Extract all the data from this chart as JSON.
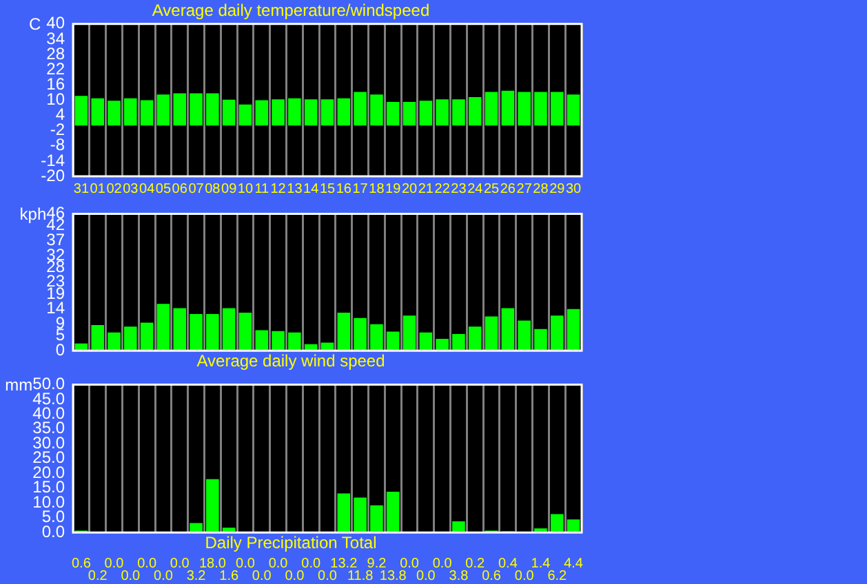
{
  "chart_data": [
    {
      "type": "bar",
      "title": "Average daily temperature/windspeed",
      "ylabel": "C",
      "categories": [
        "31",
        "01",
        "02",
        "03",
        "04",
        "05",
        "06",
        "07",
        "08",
        "09",
        "10",
        "11",
        "12",
        "13",
        "14",
        "15",
        "16",
        "17",
        "18",
        "19",
        "20",
        "21",
        "22",
        "23",
        "24",
        "25",
        "26",
        "27",
        "28",
        "29",
        "30"
      ],
      "values": [
        11.7,
        10.7,
        9.8,
        10.7,
        10,
        12.2,
        12.7,
        12.7,
        12.7,
        10.2,
        8.3,
        10,
        10.3,
        10.7,
        10.3,
        10.3,
        10.7,
        13.2,
        12.2,
        9.3,
        9.3,
        9.8,
        10.3,
        10.3,
        11.2,
        13.2,
        13.7,
        13.2,
        13.2,
        13.2,
        12.2
      ],
      "color": "#00ff00",
      "ylim": [
        -20,
        40
      ],
      "yticks": [
        -20,
        -14,
        -8,
        -2,
        4,
        10,
        16,
        22,
        28,
        34,
        40
      ],
      "grid": "x"
    },
    {
      "type": "bar",
      "title": "Average daily wind speed",
      "ylabel": "kph",
      "categories": [
        "31",
        "01",
        "02",
        "03",
        "04",
        "05",
        "06",
        "07",
        "08",
        "09",
        "10",
        "11",
        "12",
        "13",
        "14",
        "15",
        "16",
        "17",
        "18",
        "19",
        "20",
        "21",
        "22",
        "23",
        "24",
        "25",
        "26",
        "27",
        "28",
        "29",
        "30"
      ],
      "values": [
        2.4,
        8.6,
        6.1,
        8.1,
        9.4,
        15.7,
        14.3,
        12.3,
        12.3,
        14.3,
        12.8,
        6.9,
        6.6,
        6.1,
        2.2,
        2.7,
        12.8,
        11,
        8.9,
        6.4,
        11.8,
        6.1,
        4,
        5.6,
        8.1,
        11.5,
        14.3,
        10.1,
        7.3,
        11.8,
        14
      ],
      "color": "#00ff00",
      "ylim": [
        0,
        46
      ],
      "yticks": [
        0,
        5,
        9,
        14,
        19,
        23,
        28,
        32,
        37,
        42,
        46
      ],
      "grid": "x",
      "tick_labels": "y"
    },
    {
      "type": "bar",
      "title": "Daily Precipitation Total",
      "ylabel": "mm",
      "categories": [
        "31",
        "01",
        "02",
        "03",
        "04",
        "05",
        "06",
        "07",
        "08",
        "09",
        "10",
        "11",
        "12",
        "13",
        "14",
        "15",
        "16",
        "17",
        "18",
        "19",
        "20",
        "21",
        "22",
        "23",
        "24",
        "25",
        "26",
        "27",
        "28",
        "29",
        "30"
      ],
      "values": [
        0.6,
        0.2,
        0,
        0,
        0,
        0,
        0,
        3.2,
        18,
        1.6,
        0,
        0,
        0,
        0,
        0,
        0,
        13.2,
        11.8,
        9.2,
        13.8,
        0,
        0,
        0,
        3.8,
        0.2,
        0.6,
        0.4,
        0,
        1.4,
        6.2,
        4.4
      ],
      "value_labels": [
        "0.6",
        "0.2",
        "0.0",
        "0.0",
        "0.0",
        "0.0",
        "0.0",
        "3.2",
        "18.0",
        "1.6",
        "0.0",
        "0.0",
        "0.0",
        "0.0",
        "0.0",
        "0.0",
        "13.2",
        "11.8",
        "9.2",
        "13.8",
        "0.0",
        "0.0",
        "0.0",
        "3.8",
        "0.2",
        "0.6",
        "0.4",
        "0.0",
        "1.4",
        "6.2",
        "4.4"
      ],
      "color": "#00ff00",
      "ylim": [
        0,
        50
      ],
      "yticks": [
        {
          "value": 0,
          "label": "0.0"
        },
        {
          "value": 5,
          "label": "5.0"
        },
        {
          "value": 10,
          "label": "10.0"
        },
        {
          "value": 15,
          "label": "15.0"
        },
        {
          "value": 20,
          "label": "20.0"
        },
        {
          "value": 25,
          "label": "25.0"
        },
        {
          "value": 30,
          "label": "30.0"
        },
        {
          "value": 35,
          "label": "35.0"
        },
        {
          "value": 40,
          "label": "40.0"
        },
        {
          "value": 45,
          "label": "45.0"
        },
        {
          "value": 50,
          "label": "50.0"
        }
      ],
      "grid": "x",
      "tick_labels": "y"
    }
  ]
}
